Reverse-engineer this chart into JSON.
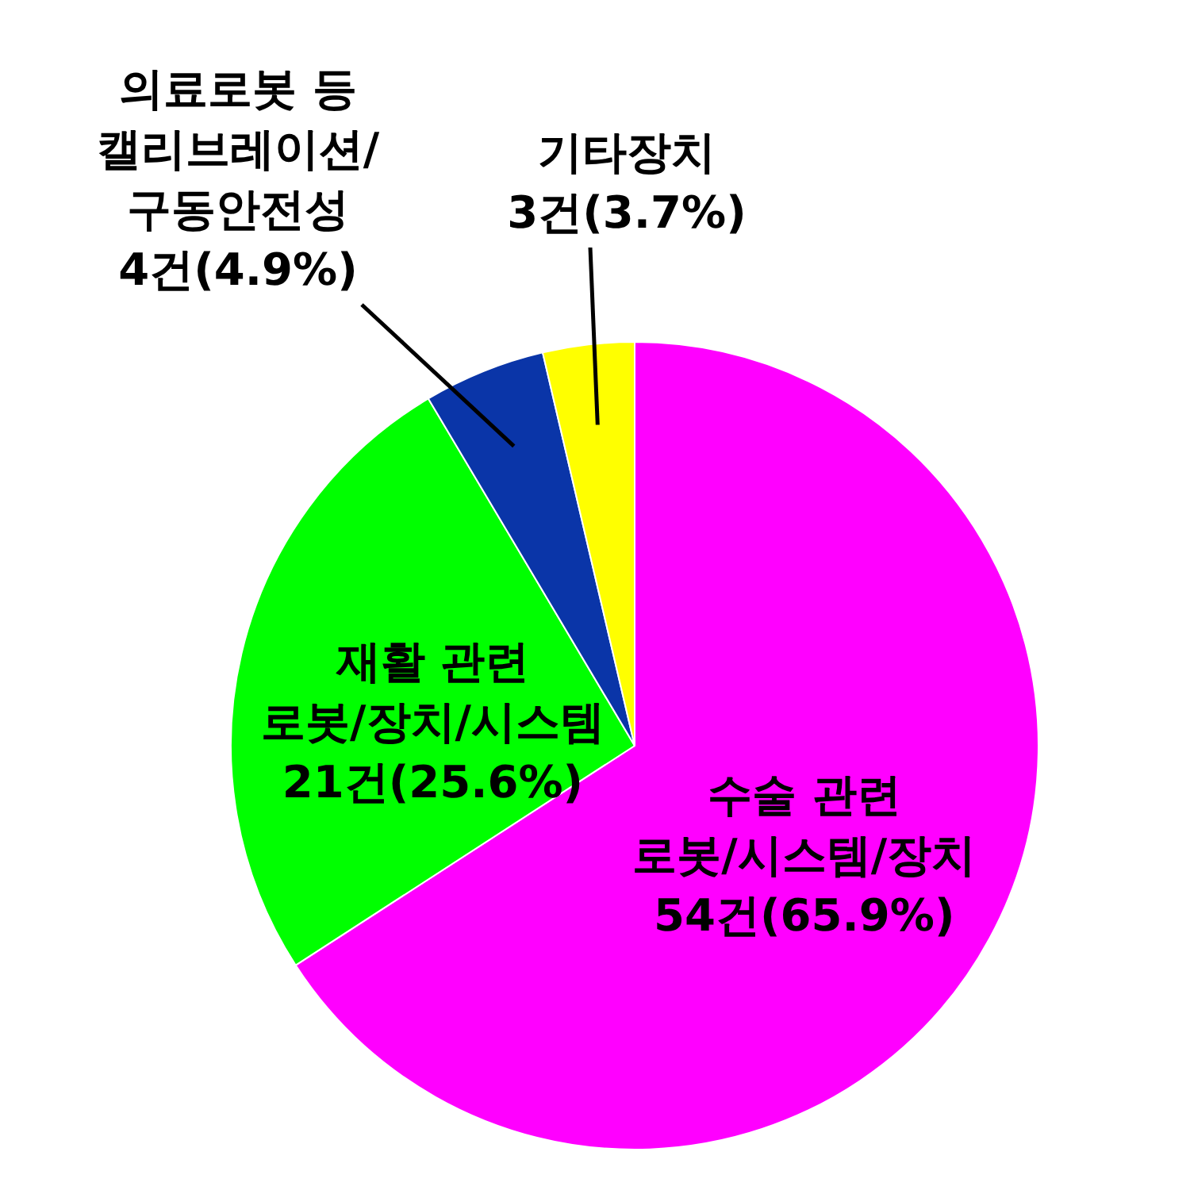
{
  "chart_data": {
    "type": "pie",
    "categories": [
      "수술 관련 로봇/시스템/장치",
      "재활 관련 로봇/장치/시스템",
      "의료로봇 등 캘리브레이션/구동안전성",
      "기타장치"
    ],
    "values": [
      54,
      21,
      4,
      3
    ],
    "colors": [
      "#ff00ff",
      "#00ff00",
      "#0a35a8",
      "#ffff00"
    ],
    "value_labels": [
      "54건(65.9%)",
      "21건(25.6%)",
      "4건(4.9%)",
      "3건(3.7%)"
    ]
  }
}
